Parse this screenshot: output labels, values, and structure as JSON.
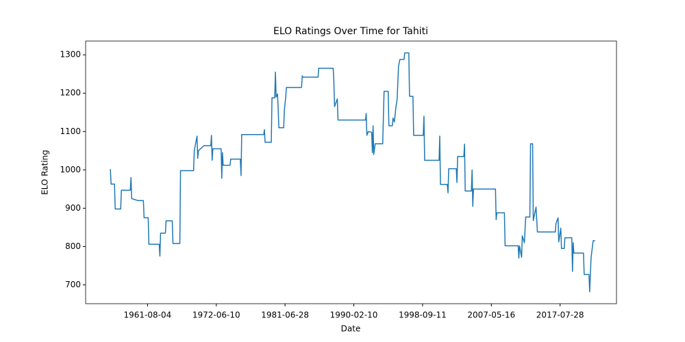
{
  "chart_data": {
    "type": "line",
    "title": "ELO Ratings Over Time for Tahiti",
    "x_label": "Date",
    "y_label": "ELO Rating",
    "color": "#1f77b4",
    "x": [
      46,
      47,
      52,
      53,
      61,
      62,
      75,
      76,
      77,
      86,
      94,
      95,
      101,
      102,
      117,
      118,
      119,
      126,
      127,
      136,
      137,
      147,
      148,
      167,
      168,
      172,
      173,
      174,
      182,
      192,
      193,
      194,
      195,
      207,
      208,
      209,
      210,
      220,
      221,
      235,
      236,
      237,
      269,
      270,
      271,
      280,
      281,
      285,
      286,
      287,
      289,
      290,
      291,
      298,
      299,
      301,
      302,
      324,
      325,
      326,
      348,
      349,
      370,
      371,
      372,
      376,
      377,
      417,
      418,
      419,
      421,
      426,
      427,
      428,
      429,
      431,
      442,
      444,
      450,
      451,
      456,
      457,
      459,
      461,
      463,
      465,
      467,
      473,
      474,
      480,
      481,
      486,
      487,
      501,
      502,
      503,
      524,
      525,
      526,
      536,
      537,
      538,
      549,
      550,
      551,
      560,
      561,
      562,
      571,
      572,
      573,
      574,
      606,
      607,
      608,
      619,
      620,
      639,
      640,
      641,
      644,
      645,
      648,
      650,
      656,
      657,
      660,
      661,
      665,
      667,
      693,
      694,
      697,
      698,
      701,
      702,
      706,
      707,
      717,
      718,
      719,
      720,
      734,
      735,
      742,
      743,
      745,
      748,
      751
    ],
    "values": [
      1002,
      963,
      963,
      898,
      898,
      947,
      947,
      980,
      925,
      920,
      920,
      875,
      875,
      806,
      806,
      775,
      835,
      835,
      867,
      867,
      808,
      808,
      998,
      998,
      1050,
      1088,
      1030,
      1050,
      1063,
      1063,
      1090,
      1025,
      1055,
      1055,
      978,
      1045,
      1012,
      1012,
      1028,
      1028,
      985,
      1092,
      1092,
      1105,
      1072,
      1072,
      1188,
      1188,
      1255,
      1190,
      1198,
      1160,
      1110,
      1110,
      1155,
      1190,
      1215,
      1215,
      1245,
      1242,
      1242,
      1265,
      1265,
      1230,
      1165,
      1185,
      1130,
      1130,
      1147,
      1090,
      1100,
      1098,
      1045,
      1115,
      1040,
      1068,
      1068,
      1205,
      1205,
      1115,
      1115,
      1135,
      1125,
      1160,
      1185,
      1270,
      1288,
      1288,
      1305,
      1305,
      1192,
      1192,
      1090,
      1090,
      1140,
      1025,
      1025,
      1088,
      962,
      962,
      940,
      1003,
      1003,
      967,
      1035,
      1035,
      1067,
      945,
      945,
      1000,
      905,
      950,
      950,
      870,
      888,
      888,
      802,
      802,
      770,
      802,
      772,
      828,
      810,
      877,
      877,
      1068,
      1068,
      868,
      903,
      838,
      838,
      860,
      875,
      812,
      848,
      795,
      795,
      823,
      823,
      735,
      810,
      783,
      783,
      727,
      727,
      682,
      770,
      815,
      815
    ],
    "xlim": [
      10,
      782
    ],
    "xticks": [
      {
        "value": 100,
        "label": "1961-08-04"
      },
      {
        "value": 200,
        "label": "1972-06-10"
      },
      {
        "value": 300,
        "label": "1981-06-28"
      },
      {
        "value": 400,
        "label": "1990-02-10"
      },
      {
        "value": 500,
        "label": "1998-09-11"
      },
      {
        "value": 600,
        "label": "2007-05-16"
      },
      {
        "value": 700,
        "label": "2017-07-28"
      }
    ],
    "ylim": [
      651,
      1336
    ],
    "yticks": [
      700,
      800,
      900,
      1000,
      1100,
      1200,
      1300
    ]
  }
}
